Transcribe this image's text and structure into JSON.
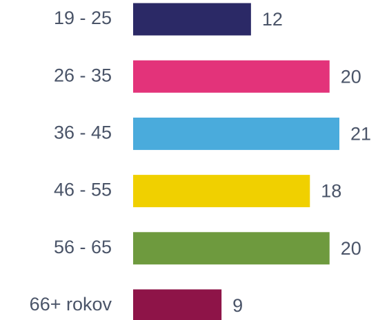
{
  "chart_data": {
    "type": "bar",
    "orientation": "horizontal",
    "categories": [
      "19 - 25",
      "26 - 35",
      "36 - 45",
      "46 - 55",
      "56 - 65",
      "66+ rokov"
    ],
    "values": [
      12,
      20,
      21,
      18,
      20,
      9
    ],
    "colors": [
      "#2b2966",
      "#e3337a",
      "#4aabdc",
      "#f0d000",
      "#6e9a3e",
      "#8e1448"
    ]
  }
}
